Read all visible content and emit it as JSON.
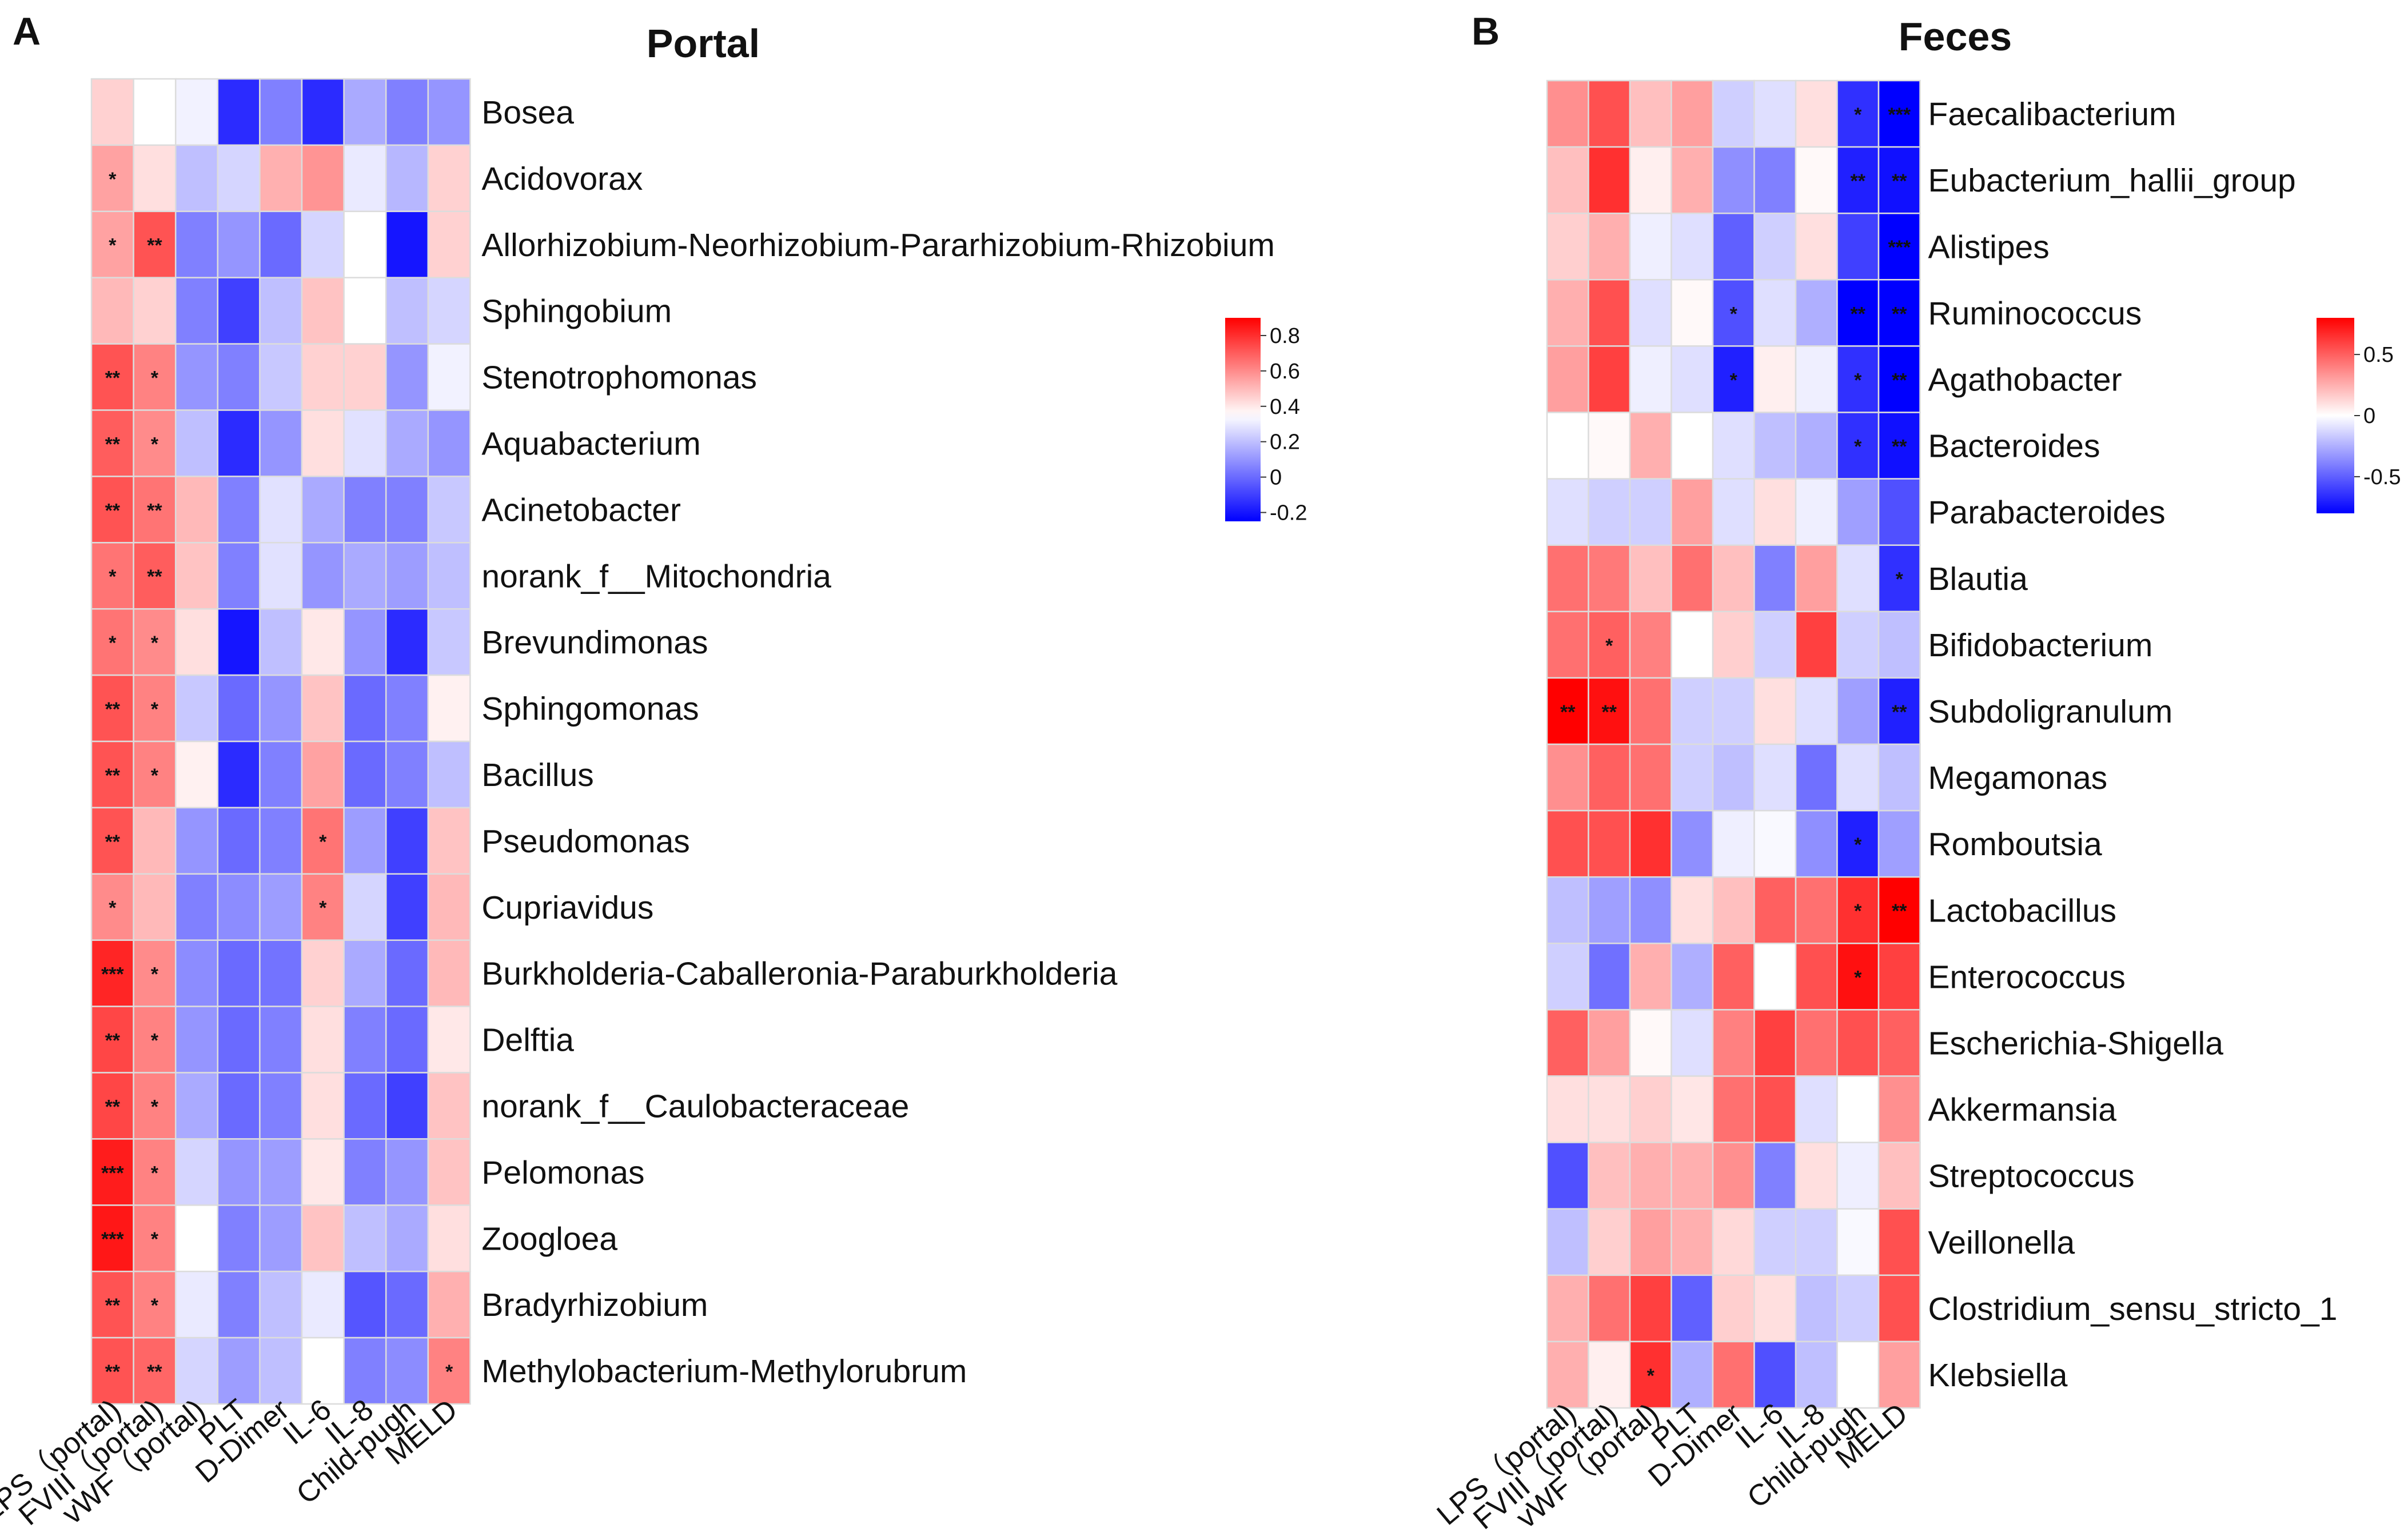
{
  "chart_data": [
    {
      "panel": "A",
      "type": "heatmap",
      "title": "Portal",
      "x_labels": [
        "LPS（portal)",
        "FVIII（portal)",
        "vWF（portal)",
        "PLT",
        "D-Dimer",
        "IL-6",
        "IL-8",
        "Child-pugh",
        "MELD"
      ],
      "y_labels": [
        "Bosea",
        "Acidovorax",
        "Allorhizobium-Neorhizobium-Pararhizobium-Rhizobium",
        "Sphingobium",
        "Stenotrophomonas",
        "Aquabacterium",
        "Acinetobacter",
        "norank_f__Mitochondria",
        "Brevundimonas",
        "Sphingomonas",
        "Bacillus",
        "Pseudomonas",
        "Cupriavidus",
        "Burkholderia-Caballeronia-Paraburkholderia",
        "Delftia",
        "norank_f__Caulobacteraceae",
        "Pelomonas",
        "Zoogloea",
        "Bradyrhizobium",
        "Methylobacterium-Methylorubrum"
      ],
      "values": [
        [
          0.45,
          0.35,
          0.32,
          -0.15,
          0.05,
          -0.15,
          0.15,
          0.05,
          0.1
        ],
        [
          0.55,
          0.42,
          0.2,
          0.25,
          0.52,
          0.58,
          0.3,
          0.18,
          0.45
        ],
        [
          0.55,
          0.72,
          0.05,
          0.1,
          0.0,
          0.25,
          0.35,
          -0.2,
          0.45
        ],
        [
          0.5,
          0.45,
          0.05,
          -0.1,
          0.2,
          0.48,
          0.35,
          0.2,
          0.25
        ],
        [
          0.72,
          0.62,
          0.1,
          0.05,
          0.22,
          0.45,
          0.45,
          0.1,
          0.32
        ],
        [
          0.7,
          0.6,
          0.2,
          -0.15,
          0.1,
          0.42,
          0.28,
          0.15,
          0.1
        ],
        [
          0.72,
          0.65,
          0.5,
          0.05,
          0.28,
          0.15,
          0.05,
          0.05,
          0.22
        ],
        [
          0.65,
          0.7,
          0.48,
          0.05,
          0.28,
          0.1,
          0.15,
          0.12,
          0.2
        ],
        [
          0.65,
          0.6,
          0.42,
          -0.2,
          0.2,
          0.4,
          0.1,
          -0.15,
          0.22
        ],
        [
          0.72,
          0.62,
          0.22,
          0.0,
          0.1,
          0.48,
          0.0,
          0.05,
          0.38
        ],
        [
          0.72,
          0.62,
          0.38,
          -0.15,
          0.05,
          0.55,
          0.0,
          0.05,
          0.2
        ],
        [
          0.72,
          0.5,
          0.1,
          0.0,
          0.05,
          0.65,
          0.12,
          -0.1,
          0.48
        ],
        [
          0.6,
          0.5,
          0.05,
          0.08,
          0.12,
          0.62,
          0.25,
          -0.1,
          0.5
        ],
        [
          0.82,
          0.6,
          0.08,
          0.0,
          0.02,
          0.45,
          0.15,
          0.0,
          0.5
        ],
        [
          0.75,
          0.62,
          0.1,
          0.0,
          0.05,
          0.42,
          0.05,
          0.0,
          0.4
        ],
        [
          0.75,
          0.62,
          0.15,
          0.0,
          0.05,
          0.42,
          0.0,
          -0.1,
          0.48
        ],
        [
          0.84,
          0.62,
          0.25,
          0.1,
          0.12,
          0.4,
          0.05,
          0.1,
          0.48
        ],
        [
          0.85,
          0.62,
          0.35,
          0.05,
          0.12,
          0.48,
          0.2,
          0.15,
          0.42
        ],
        [
          0.72,
          0.62,
          0.3,
          0.05,
          0.2,
          0.3,
          -0.05,
          0.0,
          0.52
        ],
        [
          0.72,
          0.68,
          0.25,
          0.12,
          0.2,
          0.35,
          0.05,
          0.08,
          0.62
        ]
      ],
      "significance": [
        [
          "",
          "",
          "",
          "",
          "",
          "",
          "",
          "",
          ""
        ],
        [
          "*",
          "",
          "",
          "",
          "",
          "",
          "",
          "",
          ""
        ],
        [
          "*",
          "**",
          "",
          "",
          "",
          "",
          "",
          "",
          ""
        ],
        [
          "",
          "",
          "",
          "",
          "",
          "",
          "",
          "",
          ""
        ],
        [
          "**",
          "*",
          "",
          "",
          "",
          "",
          "",
          "",
          ""
        ],
        [
          "**",
          "*",
          "",
          "",
          "",
          "",
          "",
          "",
          ""
        ],
        [
          "**",
          "**",
          "",
          "",
          "",
          "",
          "",
          "",
          ""
        ],
        [
          "*",
          "**",
          "",
          "",
          "",
          "",
          "",
          "",
          ""
        ],
        [
          "*",
          "*",
          "",
          "",
          "",
          "",
          "",
          "",
          ""
        ],
        [
          "**",
          "*",
          "",
          "",
          "",
          "",
          "",
          "",
          ""
        ],
        [
          "**",
          "*",
          "",
          "",
          "",
          "",
          "",
          "",
          ""
        ],
        [
          "**",
          "",
          "",
          "",
          "",
          "*",
          "",
          "",
          ""
        ],
        [
          "*",
          "",
          "",
          "",
          "",
          "*",
          "",
          "",
          ""
        ],
        [
          "***",
          "*",
          "",
          "",
          "",
          "",
          "",
          "",
          ""
        ],
        [
          "**",
          "*",
          "",
          "",
          "",
          "",
          "",
          "",
          ""
        ],
        [
          "**",
          "*",
          "",
          "",
          "",
          "",
          "",
          "",
          ""
        ],
        [
          "***",
          "*",
          "",
          "",
          "",
          "",
          "",
          "",
          ""
        ],
        [
          "***",
          "*",
          "",
          "",
          "",
          "",
          "",
          "",
          ""
        ],
        [
          "**",
          "*",
          "",
          "",
          "",
          "",
          "",
          "",
          ""
        ],
        [
          "**",
          "**",
          "",
          "",
          "",
          "",
          "",
          "",
          "*"
        ]
      ],
      "color_scale": {
        "min": -0.25,
        "mid": 0.35,
        "max": 0.9,
        "ticks": [
          0.8,
          0.6,
          0.4,
          0.2,
          0,
          -0.2
        ],
        "tick_labels": [
          "0.8",
          "0.6",
          "0.4",
          "0.2",
          "0",
          "-0.2"
        ],
        "low_color": "#0000ff",
        "mid_color": "#ffffff",
        "high_color": "#ff0000"
      }
    },
    {
      "panel": "B",
      "type": "heatmap",
      "title": "Feces",
      "x_labels": [
        "LPS（portal)",
        "FVIII（portal)",
        "vWF（portal)",
        "PLT",
        "D-Dimer",
        "IL-6",
        "IL-8",
        "Child-pugh",
        "MELD"
      ],
      "y_labels": [
        "Faecalibacterium",
        "Eubacterium_hallii_group",
        "Alistipes",
        "Ruminococcus",
        "Agathobacter",
        "Bacteroides",
        "Parabacteroides",
        "Blautia",
        "Bifidobacterium",
        "Subdoligranulum",
        "Megamonas",
        "Romboutsia",
        "Lactobacillus",
        "Enterococcus",
        "Escherichia-Shigella",
        "Akkermansia",
        "Streptococcus",
        "Veillonella",
        "Clostridium_sensu_stricto_1",
        "Klebsiella"
      ],
      "values": [
        [
          0.35,
          0.55,
          0.2,
          0.3,
          -0.15,
          -0.1,
          0.1,
          -0.65,
          -0.85
        ],
        [
          0.2,
          0.65,
          0.05,
          0.25,
          -0.35,
          -0.4,
          0.02,
          -0.7,
          -0.75
        ],
        [
          0.15,
          0.25,
          -0.05,
          -0.1,
          -0.5,
          -0.15,
          0.1,
          -0.6,
          -0.85
        ],
        [
          0.25,
          0.55,
          -0.1,
          0.02,
          -0.55,
          -0.1,
          -0.25,
          -0.8,
          -0.8
        ],
        [
          0.3,
          0.6,
          -0.05,
          -0.1,
          -0.7,
          0.05,
          -0.05,
          -0.65,
          -0.8
        ],
        [
          0.0,
          0.02,
          0.25,
          0.0,
          -0.1,
          -0.2,
          -0.25,
          -0.65,
          -0.75
        ],
        [
          -0.1,
          -0.15,
          -0.15,
          0.3,
          -0.1,
          0.1,
          -0.05,
          -0.3,
          -0.55
        ],
        [
          0.45,
          0.42,
          0.2,
          0.45,
          0.2,
          -0.4,
          0.3,
          -0.1,
          -0.65
        ],
        [
          0.45,
          0.5,
          0.4,
          0.0,
          0.15,
          -0.15,
          0.6,
          -0.15,
          -0.2
        ],
        [
          0.85,
          0.75,
          0.45,
          -0.15,
          -0.15,
          0.1,
          -0.1,
          -0.3,
          -0.7
        ],
        [
          0.35,
          0.5,
          0.45,
          -0.15,
          -0.2,
          -0.1,
          -0.45,
          -0.1,
          -0.2
        ],
        [
          0.55,
          0.55,
          0.65,
          -0.35,
          -0.05,
          -0.02,
          -0.35,
          -0.7,
          -0.3
        ],
        [
          -0.2,
          -0.3,
          -0.35,
          0.1,
          0.2,
          0.5,
          0.45,
          0.65,
          0.85
        ],
        [
          -0.15,
          -0.45,
          0.25,
          -0.25,
          0.5,
          0.0,
          0.55,
          0.75,
          0.6
        ],
        [
          0.5,
          0.3,
          0.02,
          -0.1,
          0.4,
          0.6,
          0.45,
          0.55,
          0.5
        ],
        [
          0.1,
          0.1,
          0.15,
          0.08,
          0.45,
          0.55,
          -0.1,
          0.0,
          0.35
        ],
        [
          -0.55,
          0.2,
          0.25,
          0.25,
          0.35,
          -0.4,
          0.1,
          -0.05,
          0.2
        ],
        [
          -0.2,
          0.15,
          0.3,
          0.25,
          0.12,
          -0.15,
          -0.15,
          -0.02,
          0.55
        ],
        [
          0.25,
          0.45,
          0.6,
          -0.5,
          0.15,
          0.1,
          -0.2,
          -0.15,
          0.55
        ],
        [
          0.25,
          0.05,
          0.65,
          -0.25,
          0.45,
          -0.55,
          -0.2,
          0.0,
          0.3
        ]
      ],
      "significance": [
        [
          "",
          "",
          "",
          "",
          "",
          "",
          "",
          "*",
          "***"
        ],
        [
          "",
          "",
          "",
          "",
          "",
          "",
          "",
          "**",
          "**"
        ],
        [
          "",
          "",
          "",
          "",
          "",
          "",
          "",
          "",
          "***"
        ],
        [
          "",
          "",
          "",
          "",
          "*",
          "",
          "",
          "**",
          "**"
        ],
        [
          "",
          "",
          "",
          "",
          "*",
          "",
          "",
          "*",
          "**"
        ],
        [
          "",
          "",
          "",
          "",
          "",
          "",
          "",
          "*",
          "**"
        ],
        [
          "",
          "",
          "",
          "",
          "",
          "",
          "",
          "",
          ""
        ],
        [
          "",
          "",
          "",
          "",
          "",
          "",
          "",
          "",
          "*"
        ],
        [
          "",
          "*",
          "",
          "",
          "",
          "",
          "",
          "",
          ""
        ],
        [
          "**",
          "**",
          "",
          "",
          "",
          "",
          "",
          "",
          "**"
        ],
        [
          "",
          "",
          "",
          "",
          "",
          "",
          "",
          "",
          ""
        ],
        [
          "",
          "",
          "",
          "",
          "",
          "",
          "",
          "*",
          ""
        ],
        [
          "",
          "",
          "",
          "",
          "",
          "",
          "",
          "*",
          "**"
        ],
        [
          "",
          "",
          "",
          "",
          "",
          "",
          "",
          "*",
          ""
        ],
        [
          "",
          "",
          "",
          "",
          "",
          "",
          "",
          "",
          ""
        ],
        [
          "",
          "",
          "",
          "",
          "",
          "",
          "",
          "",
          ""
        ],
        [
          "",
          "",
          "",
          "",
          "",
          "",
          "",
          "",
          ""
        ],
        [
          "",
          "",
          "",
          "",
          "",
          "",
          "",
          "",
          ""
        ],
        [
          "",
          "",
          "",
          "",
          "",
          "",
          "",
          "",
          ""
        ],
        [
          "",
          "",
          "*",
          "",
          "",
          "",
          "",
          "",
          ""
        ]
      ],
      "color_scale": {
        "min": -0.8,
        "mid": 0,
        "max": 0.8,
        "ticks": [
          0.5,
          0,
          -0.5
        ],
        "tick_labels": [
          "0.5",
          "0",
          "-0.5"
        ],
        "low_color": "#0000ff",
        "mid_color": "#ffffff",
        "high_color": "#ff0000"
      }
    }
  ],
  "panels": {
    "a": {
      "letter": "A"
    },
    "b": {
      "letter": "B"
    }
  }
}
